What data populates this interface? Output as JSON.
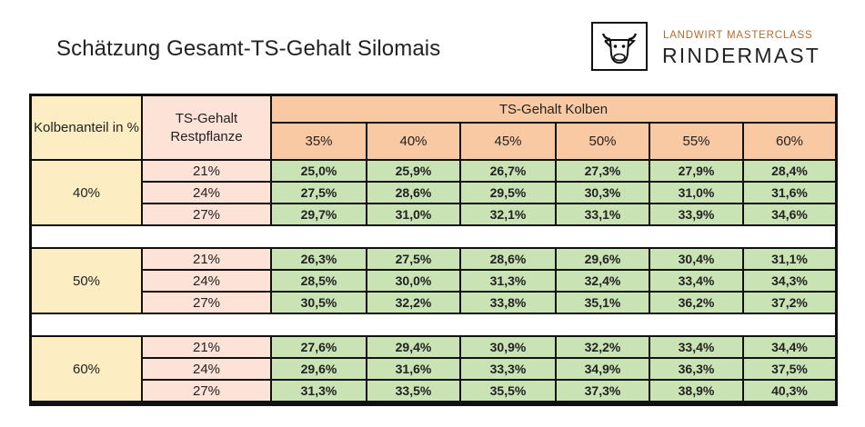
{
  "title": "Schätzung Gesamt-TS-Gehalt Silomais",
  "brand": {
    "tagline": "LANDWIRT MASTERCLASS",
    "name": "RINDERMAST",
    "icon": "cow-head-icon"
  },
  "table": {
    "col1_header": "Kolbenanteil in %",
    "col2_header": "TS-Gehalt Restpflanze",
    "group_header": "TS-Gehalt Kolben",
    "kolben_cols": [
      "35%",
      "40%",
      "45%",
      "50%",
      "55%",
      "60%"
    ],
    "groups": [
      {
        "anteil": "40%",
        "rows": [
          {
            "rest": "21%",
            "values": [
              "25,0%",
              "25,9%",
              "26,7%",
              "27,3%",
              "27,9%",
              "28,4%"
            ]
          },
          {
            "rest": "24%",
            "values": [
              "27,5%",
              "28,6%",
              "29,5%",
              "30,3%",
              "31,0%",
              "31,6%"
            ]
          },
          {
            "rest": "27%",
            "values": [
              "29,7%",
              "31,0%",
              "32,1%",
              "33,1%",
              "33,9%",
              "34,6%"
            ]
          }
        ]
      },
      {
        "anteil": "50%",
        "rows": [
          {
            "rest": "21%",
            "values": [
              "26,3%",
              "27,5%",
              "28,6%",
              "29,6%",
              "30,4%",
              "31,1%"
            ]
          },
          {
            "rest": "24%",
            "values": [
              "28,5%",
              "30,0%",
              "31,3%",
              "32,4%",
              "33,4%",
              "34,3%"
            ]
          },
          {
            "rest": "27%",
            "values": [
              "30,5%",
              "32,2%",
              "33,8%",
              "35,1%",
              "36,2%",
              "37,2%"
            ]
          }
        ]
      },
      {
        "anteil": "60%",
        "rows": [
          {
            "rest": "21%",
            "values": [
              "27,6%",
              "29,4%",
              "30,9%",
              "32,2%",
              "33,4%",
              "34,4%"
            ]
          },
          {
            "rest": "24%",
            "values": [
              "29,6%",
              "31,6%",
              "33,3%",
              "34,9%",
              "36,3%",
              "37,5%"
            ]
          },
          {
            "rest": "27%",
            "values": [
              "31,3%",
              "33,5%",
              "35,5%",
              "37,3%",
              "38,9%",
              "40,3%"
            ]
          }
        ]
      }
    ]
  }
}
